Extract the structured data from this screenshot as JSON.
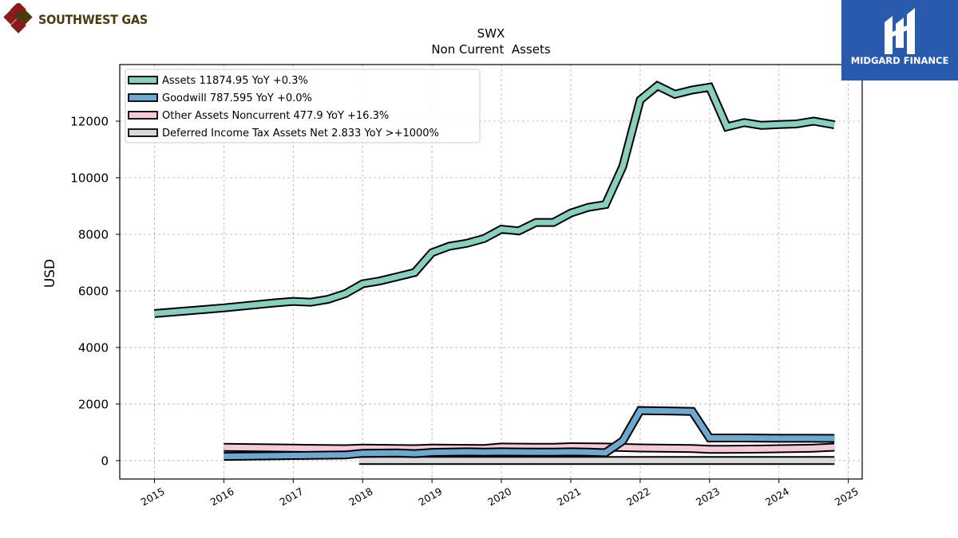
{
  "company_logo": {
    "text": "SOUTHWEST GAS"
  },
  "publisher_logo": {
    "text": "MIDGARD FINANCE",
    "bg_color": "#2a5aac"
  },
  "chart_data": {
    "type": "area",
    "title": "SWX",
    "subtitle": "Non Current  Assets",
    "ylabel": "USD",
    "xlabel": "",
    "xlim": [
      2014.5,
      2025.2
    ],
    "ylim": [
      -650,
      14000
    ],
    "xticks": [
      "2015",
      "2016",
      "2017",
      "2018",
      "2019",
      "2020",
      "2021",
      "2022",
      "2023",
      "2024",
      "2025"
    ],
    "yticks": [
      "0",
      "2000",
      "4000",
      "6000",
      "8000",
      "10000",
      "12000"
    ],
    "grid": true,
    "legend_position": "top-left",
    "series": [
      {
        "name": "Assets",
        "legend_label": "Assets  11874.95 YoY +0.3%",
        "color": "#88cfbf",
        "x": [
          2015.0,
          2016.0,
          2016.75,
          2017.0,
          2017.25,
          2017.5,
          2017.75,
          2018.0,
          2018.25,
          2018.5,
          2018.75,
          2019.0,
          2019.25,
          2019.5,
          2019.75,
          2020.0,
          2020.25,
          2020.5,
          2020.75,
          2021.0,
          2021.25,
          2021.5,
          2021.75,
          2022.0,
          2022.25,
          2022.5,
          2022.75,
          2023.0,
          2023.25,
          2023.5,
          2023.75,
          2024.0,
          2024.25,
          2024.5,
          2024.8
        ],
        "values": [
          5200,
          5400,
          5580,
          5630,
          5600,
          5700,
          5900,
          6250,
          6350,
          6500,
          6650,
          7350,
          7580,
          7680,
          7850,
          8180,
          8120,
          8420,
          8420,
          8750,
          8950,
          9050,
          10400,
          12750,
          13250,
          12950,
          13100,
          13200,
          11800,
          11950,
          11850,
          11880,
          11900,
          12000,
          11870
        ]
      },
      {
        "name": "Goodwill",
        "legend_label": "Goodwill  787.595 YoY +0.0%",
        "color": "#6fa8cf",
        "x": [
          2016.0,
          2017.0,
          2017.75,
          2018.0,
          2018.5,
          2018.75,
          2019.0,
          2019.5,
          2019.75,
          2020.0,
          2020.5,
          2020.75,
          2021.0,
          2021.25,
          2021.5,
          2021.75,
          2022.0,
          2022.5,
          2022.75,
          2023.0,
          2023.5,
          2024.0,
          2024.5,
          2024.8
        ],
        "values": [
          150,
          180,
          200,
          260,
          270,
          250,
          290,
          310,
          300,
          310,
          300,
          300,
          310,
          300,
          280,
          700,
          1770,
          1750,
          1740,
          800,
          800,
          790,
          790,
          788
        ]
      },
      {
        "name": "Other Assets Noncurrent",
        "legend_label": "Other Assets Noncurrent  477.9 YoY +16.3%",
        "color": "#f7c9dd",
        "x": [
          2016.0,
          2017.0,
          2017.75,
          2018.0,
          2018.75,
          2019.0,
          2019.75,
          2020.0,
          2020.5,
          2020.75,
          2021.0,
          2021.5,
          2022.0,
          2022.75,
          2023.0,
          2023.25,
          2023.75,
          2024.0,
          2024.5,
          2024.8
        ],
        "values": [
          470,
          440,
          420,
          440,
          420,
          440,
          430,
          480,
          470,
          470,
          490,
          480,
          450,
          430,
          400,
          400,
          410,
          420,
          440,
          478
        ]
      },
      {
        "name": "Deferred Income Tax Assets Net",
        "legend_label": "Deferred Income Tax Assets Net  2.833 YoY >+1000%",
        "color": "#d9d9d9",
        "x": [
          2017.95,
          2024.8
        ],
        "values": [
          3,
          3
        ]
      }
    ]
  }
}
